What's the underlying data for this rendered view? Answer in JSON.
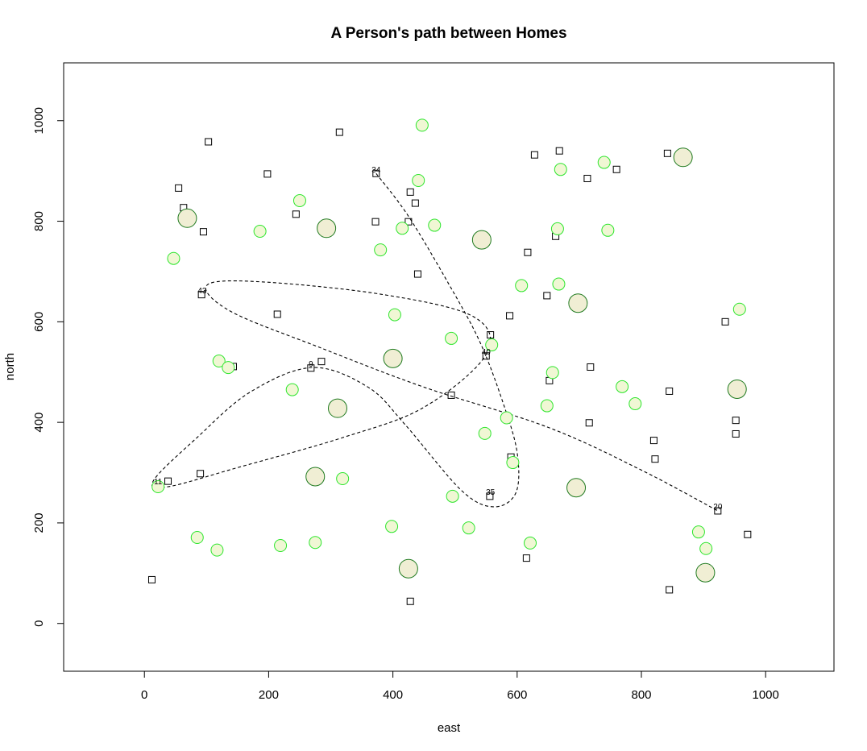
{
  "chart_data": {
    "type": "scatter",
    "title": "A Person's path between Homes",
    "xlabel": "east",
    "ylabel": "north",
    "xlim": [
      -130,
      1110
    ],
    "ylim": [
      -95,
      1115
    ],
    "xticks": [
      0,
      200,
      400,
      600,
      800,
      1000
    ],
    "yticks": [
      0,
      200,
      400,
      600,
      800,
      1000
    ],
    "colors": {
      "small_circle_fill": "#f0f7d4",
      "small_circle_stroke": "#2de62d",
      "large_circle_fill": "#f0eed4",
      "large_circle_stroke": "#1f7a1f",
      "square_stroke": "#000000",
      "path": "#000000"
    },
    "homes": [
      {
        "x": 12,
        "y": 87
      },
      {
        "x": 38,
        "y": 283
      },
      {
        "x": 55,
        "y": 866
      },
      {
        "x": 63,
        "y": 827
      },
      {
        "x": 90,
        "y": 298
      },
      {
        "x": 95,
        "y": 779
      },
      {
        "x": 92,
        "y": 654
      },
      {
        "x": 103,
        "y": 958
      },
      {
        "x": 143,
        "y": 511
      },
      {
        "x": 198,
        "y": 894
      },
      {
        "x": 214,
        "y": 615
      },
      {
        "x": 244,
        "y": 814
      },
      {
        "x": 268,
        "y": 508
      },
      {
        "x": 285,
        "y": 521
      },
      {
        "x": 314,
        "y": 977
      },
      {
        "x": 372,
        "y": 799
      },
      {
        "x": 373,
        "y": 895
      },
      {
        "x": 425,
        "y": 799
      },
      {
        "x": 428,
        "y": 858
      },
      {
        "x": 428,
        "y": 44
      },
      {
        "x": 436,
        "y": 836
      },
      {
        "x": 440,
        "y": 695
      },
      {
        "x": 494,
        "y": 454
      },
      {
        "x": 550,
        "y": 532
      },
      {
        "x": 557,
        "y": 574
      },
      {
        "x": 556,
        "y": 253
      },
      {
        "x": 588,
        "y": 612
      },
      {
        "x": 590,
        "y": 331
      },
      {
        "x": 615,
        "y": 130
      },
      {
        "x": 617,
        "y": 738
      },
      {
        "x": 628,
        "y": 932
      },
      {
        "x": 648,
        "y": 652
      },
      {
        "x": 652,
        "y": 483
      },
      {
        "x": 662,
        "y": 770
      },
      {
        "x": 668,
        "y": 940
      },
      {
        "x": 713,
        "y": 885
      },
      {
        "x": 716,
        "y": 399
      },
      {
        "x": 718,
        "y": 510
      },
      {
        "x": 760,
        "y": 903
      },
      {
        "x": 820,
        "y": 364
      },
      {
        "x": 822,
        "y": 327
      },
      {
        "x": 842,
        "y": 935
      },
      {
        "x": 845,
        "y": 462
      },
      {
        "x": 845,
        "y": 67
      },
      {
        "x": 923,
        "y": 224
      },
      {
        "x": 935,
        "y": 600
      },
      {
        "x": 952,
        "y": 404
      },
      {
        "x": 952,
        "y": 377
      },
      {
        "x": 971,
        "y": 177
      }
    ],
    "small_circles": [
      {
        "x": 47,
        "y": 726
      },
      {
        "x": 22,
        "y": 272
      },
      {
        "x": 85,
        "y": 171
      },
      {
        "x": 117,
        "y": 146
      },
      {
        "x": 120,
        "y": 522
      },
      {
        "x": 135,
        "y": 509
      },
      {
        "x": 186,
        "y": 780
      },
      {
        "x": 219,
        "y": 155
      },
      {
        "x": 238,
        "y": 465
      },
      {
        "x": 250,
        "y": 841
      },
      {
        "x": 275,
        "y": 161
      },
      {
        "x": 319,
        "y": 288
      },
      {
        "x": 380,
        "y": 743
      },
      {
        "x": 398,
        "y": 193
      },
      {
        "x": 403,
        "y": 614
      },
      {
        "x": 415,
        "y": 786
      },
      {
        "x": 441,
        "y": 881
      },
      {
        "x": 447,
        "y": 991
      },
      {
        "x": 467,
        "y": 792
      },
      {
        "x": 494,
        "y": 567
      },
      {
        "x": 496,
        "y": 253
      },
      {
        "x": 522,
        "y": 190
      },
      {
        "x": 548,
        "y": 378
      },
      {
        "x": 559,
        "y": 554
      },
      {
        "x": 583,
        "y": 409
      },
      {
        "x": 593,
        "y": 320
      },
      {
        "x": 607,
        "y": 672
      },
      {
        "x": 621,
        "y": 160
      },
      {
        "x": 648,
        "y": 433
      },
      {
        "x": 657,
        "y": 499
      },
      {
        "x": 665,
        "y": 785
      },
      {
        "x": 667,
        "y": 675
      },
      {
        "x": 670,
        "y": 903
      },
      {
        "x": 740,
        "y": 917
      },
      {
        "x": 746,
        "y": 782
      },
      {
        "x": 769,
        "y": 471
      },
      {
        "x": 790,
        "y": 437
      },
      {
        "x": 892,
        "y": 182
      },
      {
        "x": 904,
        "y": 149
      },
      {
        "x": 958,
        "y": 625
      }
    ],
    "large_circles": [
      {
        "x": 69,
        "y": 806
      },
      {
        "x": 293,
        "y": 786
      },
      {
        "x": 311,
        "y": 428
      },
      {
        "x": 275,
        "y": 292
      },
      {
        "x": 400,
        "y": 527
      },
      {
        "x": 425,
        "y": 109
      },
      {
        "x": 543,
        "y": 763
      },
      {
        "x": 698,
        "y": 637
      },
      {
        "x": 695,
        "y": 270
      },
      {
        "x": 867,
        "y": 927
      },
      {
        "x": 954,
        "y": 466
      },
      {
        "x": 903,
        "y": 101
      }
    ],
    "path_labels": [
      {
        "text": "34",
        "x": 373,
        "y": 897
      },
      {
        "text": "43",
        "x": 93,
        "y": 657
      },
      {
        "text": "40",
        "x": 550,
        "y": 535
      },
      {
        "text": "9",
        "x": 268,
        "y": 511
      },
      {
        "text": "11",
        "x": 22,
        "y": 277
      },
      {
        "text": "35",
        "x": 557,
        "y": 256
      },
      {
        "text": "20",
        "x": 923,
        "y": 227
      }
    ],
    "path": [
      {
        "x": 373,
        "y": 895
      },
      {
        "x": 425,
        "y": 810
      },
      {
        "x": 490,
        "y": 675
      },
      {
        "x": 540,
        "y": 560
      },
      {
        "x": 577,
        "y": 440
      },
      {
        "x": 600,
        "y": 340
      },
      {
        "x": 598,
        "y": 260
      },
      {
        "x": 562,
        "y": 232
      },
      {
        "x": 510,
        "y": 265
      },
      {
        "x": 420,
        "y": 395
      },
      {
        "x": 360,
        "y": 470
      },
      {
        "x": 270,
        "y": 509
      },
      {
        "x": 170,
        "y": 460
      },
      {
        "x": 85,
        "y": 370
      },
      {
        "x": 15,
        "y": 285
      },
      {
        "x": 38,
        "y": 272
      },
      {
        "x": 150,
        "y": 310
      },
      {
        "x": 320,
        "y": 370
      },
      {
        "x": 450,
        "y": 430
      },
      {
        "x": 550,
        "y": 535
      },
      {
        "x": 530,
        "y": 610
      },
      {
        "x": 380,
        "y": 655
      },
      {
        "x": 180,
        "y": 680
      },
      {
        "x": 100,
        "y": 672
      },
      {
        "x": 140,
        "y": 620
      },
      {
        "x": 280,
        "y": 550
      },
      {
        "x": 450,
        "y": 470
      },
      {
        "x": 650,
        "y": 390
      },
      {
        "x": 800,
        "y": 305
      },
      {
        "x": 923,
        "y": 224
      }
    ]
  }
}
